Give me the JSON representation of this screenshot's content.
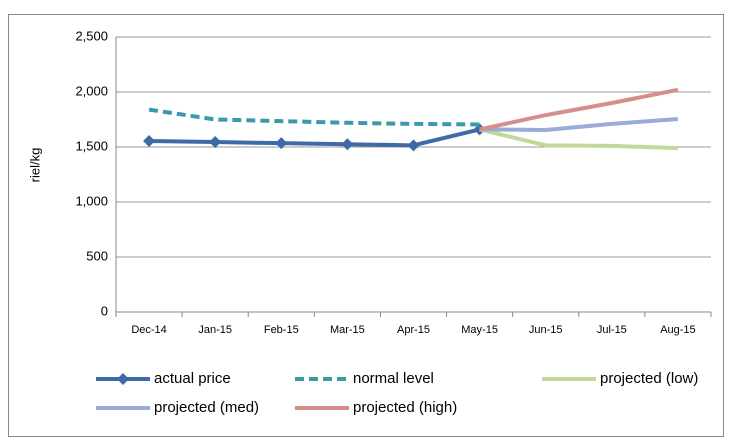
{
  "chart_data": {
    "type": "line",
    "y_label": "riel/kg",
    "categories": [
      "Dec-14",
      "Jan-15",
      "Feb-15",
      "Mar-15",
      "Apr-15",
      "May-15",
      "Jun-15",
      "Jul-15",
      "Aug-15"
    ],
    "series": [
      {
        "name": "actual price",
        "color": "#3f6aa8",
        "values": [
          1555,
          1545,
          1535,
          1525,
          1515,
          1660,
          null,
          null,
          null
        ]
      },
      {
        "name": "normal level",
        "color": "#3a9aaa",
        "dashed": true,
        "values": [
          1840,
          1750,
          1735,
          1720,
          1710,
          1705,
          null,
          null,
          null
        ]
      },
      {
        "name": "projected (low)",
        "color": "#c3d79b",
        "values": [
          null,
          null,
          null,
          null,
          null,
          1660,
          1515,
          1510,
          1490
        ]
      },
      {
        "name": "projected (med)",
        "color": "#98acd6",
        "values": [
          null,
          null,
          null,
          null,
          null,
          1660,
          1655,
          1710,
          1755
        ]
      },
      {
        "name": "projected (high)",
        "color": "#d58f8a",
        "values": [
          null,
          null,
          null,
          null,
          null,
          1660,
          1790,
          1900,
          2020
        ]
      }
    ],
    "ylim": [
      0,
      2500
    ],
    "yticks": [
      0,
      500,
      {
        "value": 1000,
        "label": "1,000"
      },
      {
        "value": 1500,
        "label": "1,500"
      },
      {
        "value": 2000,
        "label": "2,000"
      },
      {
        "value": 2500,
        "label": "2,500"
      }
    ],
    "grid": true
  }
}
